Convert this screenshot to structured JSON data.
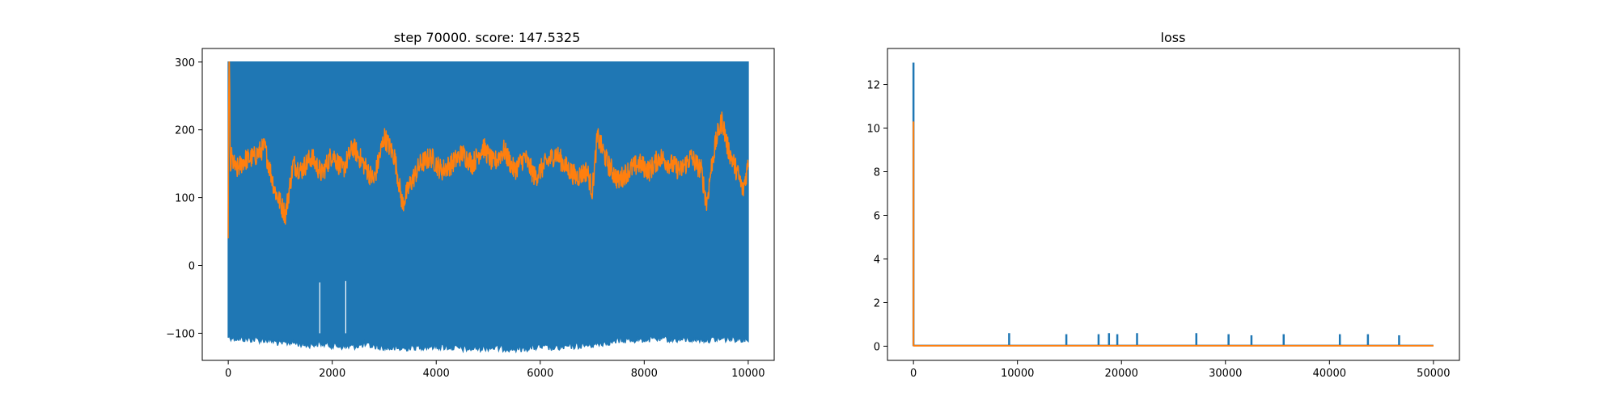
{
  "figure": {
    "background": "#ffffff"
  },
  "chart_data": [
    {
      "type": "line",
      "title": "step 70000. score: 147.5325",
      "xlabel": "",
      "ylabel": "",
      "xlim": [
        -500,
        10500
      ],
      "ylim": [
        -140,
        320
      ],
      "xticks": [
        0,
        2000,
        4000,
        6000,
        8000,
        10000
      ],
      "xtick_labels": [
        "0",
        "2000",
        "4000",
        "6000",
        "8000",
        "10000"
      ],
      "yticks": [
        -100,
        0,
        100,
        200,
        300
      ],
      "ytick_labels": [
        "−100",
        "0",
        "100",
        "200",
        "300"
      ],
      "grid": false,
      "legend": "none",
      "series": [
        {
          "color": "#1f77b4",
          "style": "band",
          "x_range": [
            0,
            10000
          ],
          "upper": 300,
          "lower_points": [
            [
              0,
              -100
            ],
            [
              200,
              -103
            ],
            [
              500,
              -104
            ],
            [
              800,
              -105
            ],
            [
              1000,
              -110
            ],
            [
              1200,
              -108
            ],
            [
              1500,
              -112
            ],
            [
              1800,
              -110
            ],
            [
              2000,
              -113
            ],
            [
              2300,
              -115
            ],
            [
              2600,
              -112
            ],
            [
              3000,
              -116
            ],
            [
              3300,
              -118
            ],
            [
              3600,
              -115
            ],
            [
              4000,
              -114
            ],
            [
              4300,
              -116
            ],
            [
              4600,
              -118
            ],
            [
              5000,
              -116
            ],
            [
              5300,
              -117
            ],
            [
              5600,
              -118
            ],
            [
              6000,
              -115
            ],
            [
              6300,
              -117
            ],
            [
              6600,
              -114
            ],
            [
              7000,
              -112
            ],
            [
              7300,
              -108
            ],
            [
              7600,
              -105
            ],
            [
              8000,
              -104
            ],
            [
              8300,
              -103
            ],
            [
              8600,
              -104
            ],
            [
              9000,
              -104
            ],
            [
              9300,
              -104
            ],
            [
              9600,
              -103
            ],
            [
              10000,
              -103
            ]
          ],
          "gaps": [
            [
              1760,
              -25
            ],
            [
              2260,
              -23
            ]
          ]
        },
        {
          "color": "#ff7f0e",
          "style": "line",
          "anchors": [
            [
              0,
              40
            ],
            [
              10,
              300
            ],
            [
              25,
              300
            ],
            [
              40,
              130
            ],
            [
              60,
              160
            ],
            [
              150,
              140
            ],
            [
              300,
              155
            ],
            [
              500,
              160
            ],
            [
              700,
              175
            ],
            [
              900,
              110
            ],
            [
              1100,
              75
            ],
            [
              1250,
              150
            ],
            [
              1400,
              140
            ],
            [
              1600,
              160
            ],
            [
              1800,
              135
            ],
            [
              2000,
              165
            ],
            [
              2200,
              140
            ],
            [
              2400,
              175
            ],
            [
              2600,
              150
            ],
            [
              2800,
              125
            ],
            [
              3000,
              190
            ],
            [
              3200,
              160
            ],
            [
              3350,
              90
            ],
            [
              3500,
              120
            ],
            [
              3700,
              150
            ],
            [
              3900,
              160
            ],
            [
              4100,
              140
            ],
            [
              4300,
              150
            ],
            [
              4500,
              165
            ],
            [
              4700,
              150
            ],
            [
              4900,
              175
            ],
            [
              5100,
              150
            ],
            [
              5300,
              170
            ],
            [
              5500,
              140
            ],
            [
              5700,
              160
            ],
            [
              5900,
              130
            ],
            [
              6100,
              150
            ],
            [
              6300,
              165
            ],
            [
              6500,
              145
            ],
            [
              6700,
              130
            ],
            [
              6900,
              140
            ],
            [
              7000,
              110
            ],
            [
              7100,
              190
            ],
            [
              7300,
              150
            ],
            [
              7500,
              125
            ],
            [
              7700,
              140
            ],
            [
              7900,
              150
            ],
            [
              8100,
              140
            ],
            [
              8300,
              160
            ],
            [
              8500,
              150
            ],
            [
              8700,
              140
            ],
            [
              8900,
              160
            ],
            [
              9100,
              140
            ],
            [
              9200,
              90
            ],
            [
              9300,
              150
            ],
            [
              9400,
              190
            ],
            [
              9500,
              215
            ],
            [
              9600,
              175
            ],
            [
              9700,
              155
            ],
            [
              9800,
              135
            ],
            [
              9900,
              110
            ],
            [
              10000,
              150
            ]
          ],
          "noise": 16
        }
      ]
    },
    {
      "type": "line",
      "title": "loss",
      "xlabel": "",
      "ylabel": "",
      "xlim": [
        -2500,
        52500
      ],
      "ylim": [
        -0.65,
        13.65
      ],
      "xticks": [
        0,
        10000,
        20000,
        30000,
        40000,
        50000
      ],
      "xtick_labels": [
        "0",
        "10000",
        "20000",
        "30000",
        "40000",
        "50000"
      ],
      "yticks": [
        0,
        2,
        4,
        6,
        8,
        10,
        12
      ],
      "ytick_labels": [
        "0",
        "2",
        "4",
        "6",
        "8",
        "10",
        "12"
      ],
      "grid": false,
      "legend": "none",
      "series": [
        {
          "color": "#1f77b4",
          "style": "spikes",
          "baseline": 0.03,
          "initial_peak": 13.0,
          "spikes": [
            [
              9200,
              0.6
            ],
            [
              14700,
              0.55
            ],
            [
              17800,
              0.55
            ],
            [
              18800,
              0.6
            ],
            [
              19600,
              0.55
            ],
            [
              21500,
              0.6
            ],
            [
              27200,
              0.6
            ],
            [
              30300,
              0.55
            ],
            [
              32500,
              0.5
            ],
            [
              35600,
              0.55
            ],
            [
              41000,
              0.55
            ],
            [
              43700,
              0.55
            ],
            [
              46700,
              0.5
            ]
          ]
        },
        {
          "color": "#ff7f0e",
          "style": "decay",
          "baseline": 0.02,
          "initial_peak": 10.3,
          "x_range": [
            0,
            50000
          ]
        }
      ]
    }
  ]
}
